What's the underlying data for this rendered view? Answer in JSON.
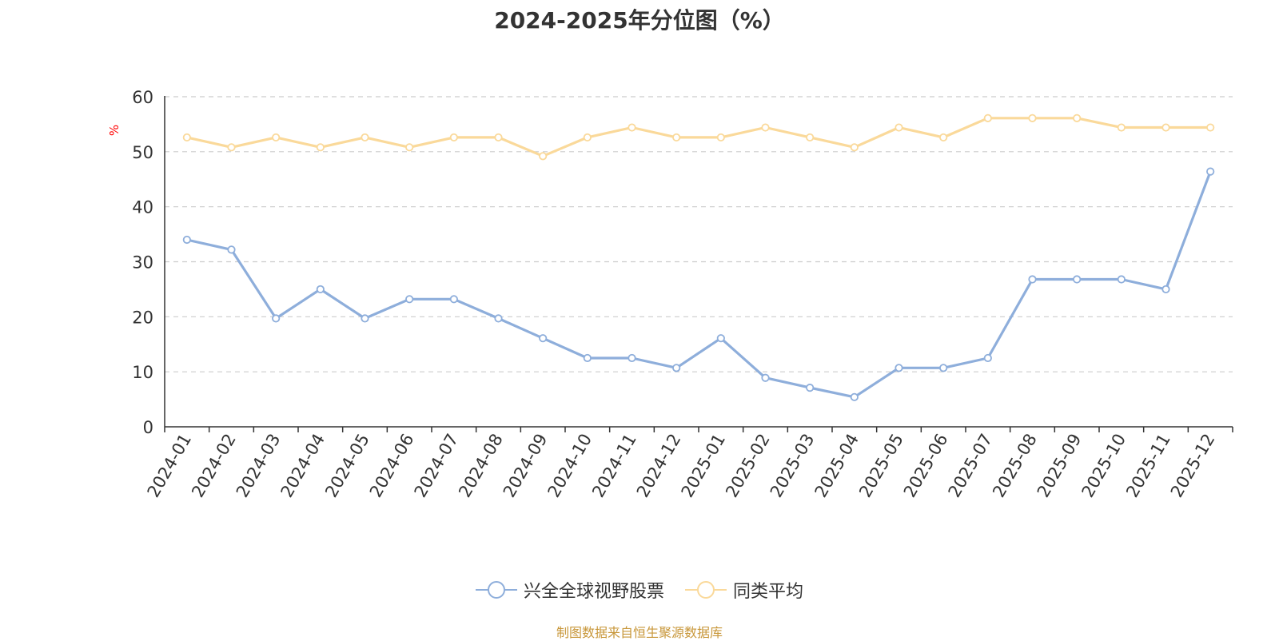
{
  "chart_data": {
    "type": "line",
    "title": "2024-2025年分位图（%）",
    "ylabel": "%",
    "xlabel": "",
    "ylim": [
      0,
      60
    ],
    "yticks": [
      0,
      10,
      20,
      30,
      40,
      50,
      60
    ],
    "grid": true,
    "legend_position": "bottom",
    "categories": [
      "2024-01",
      "2024-02",
      "2024-03",
      "2024-04",
      "2024-05",
      "2024-06",
      "2024-07",
      "2024-08",
      "2024-09",
      "2024-10",
      "2024-11",
      "2024-12",
      "2025-01",
      "2025-02",
      "2025-03",
      "2025-04",
      "2025-05",
      "2025-06",
      "2025-07",
      "2025-08",
      "2025-09",
      "2025-10",
      "2025-11",
      "2025-12"
    ],
    "series": [
      {
        "name": "兴全全球视野股票",
        "color": "#8eaedb",
        "values": [
          34.0,
          32.2,
          19.7,
          25.0,
          19.7,
          23.2,
          23.2,
          19.7,
          16.1,
          12.5,
          12.5,
          10.7,
          16.1,
          8.9,
          7.1,
          5.4,
          10.7,
          10.7,
          12.5,
          26.8,
          26.8,
          26.8,
          25.0,
          46.4
        ]
      },
      {
        "name": "同类平均",
        "color": "#fad99a",
        "values": [
          52.6,
          50.8,
          52.6,
          50.8,
          52.6,
          50.8,
          52.6,
          52.6,
          49.2,
          52.6,
          54.4,
          52.6,
          52.6,
          54.4,
          52.6,
          50.8,
          54.4,
          52.6,
          56.1,
          56.1,
          56.1,
          54.4,
          54.4,
          54.4
        ]
      }
    ]
  },
  "source_text": "制图数据来自恒生聚源数据库"
}
